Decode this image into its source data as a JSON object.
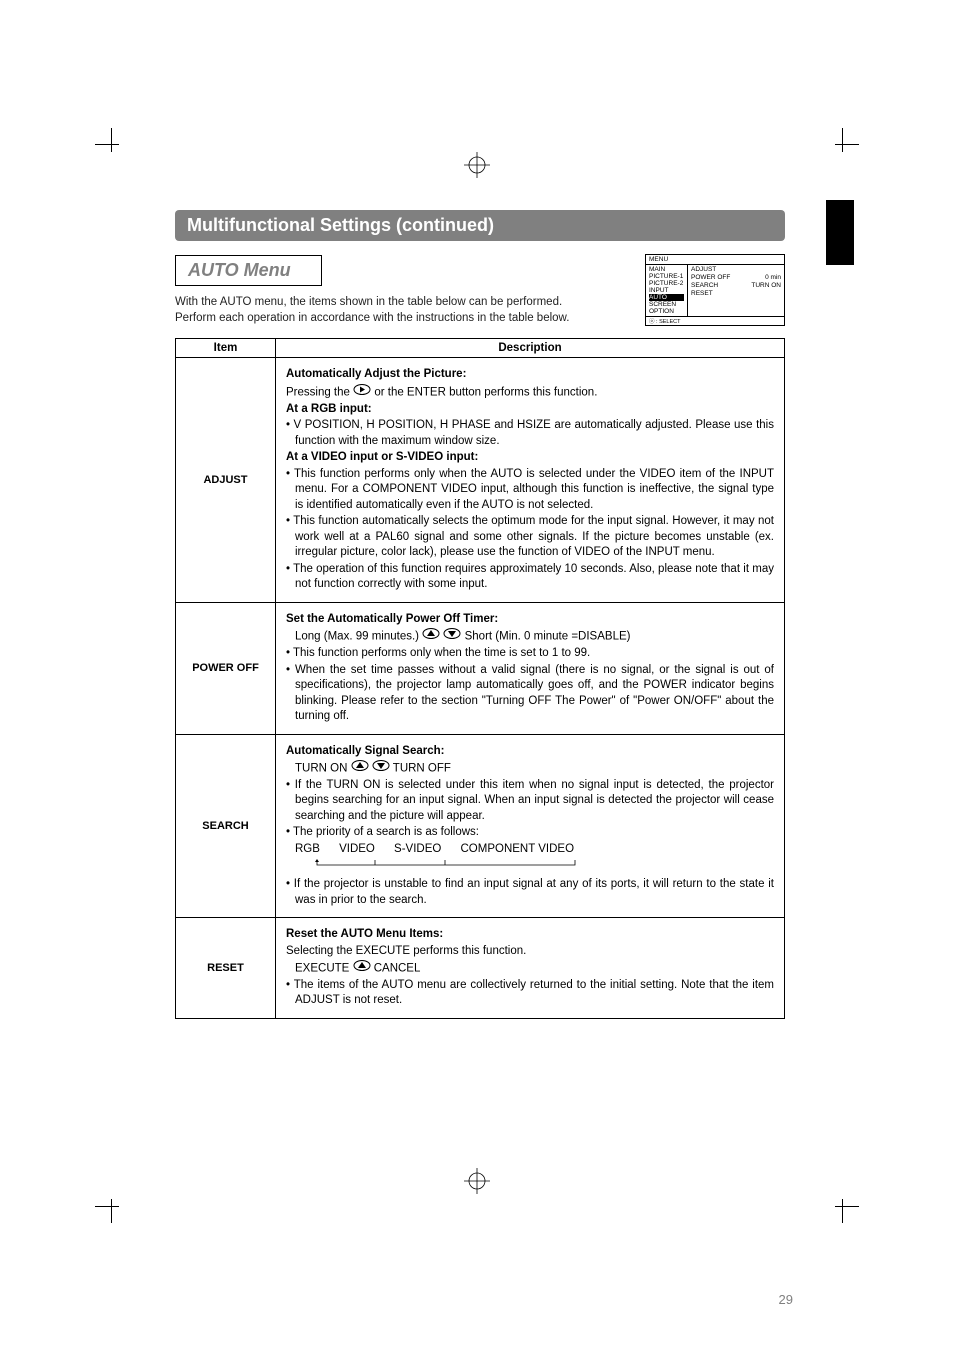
{
  "banner_title": "Multifunctional Settings (continued)",
  "section_title": "AUTO Menu",
  "intro_p1": "With the AUTO menu, the items shown in the table below can be performed.",
  "intro_p2": "Perform each operation in accordance with the instructions in the table below.",
  "menu_ss": {
    "header": "MENU",
    "left_items": [
      "MAIN",
      "PICTURE-1",
      "PICTURE-2",
      "INPUT",
      "AUTO",
      "SCREEN",
      "OPTION"
    ],
    "right_lines": [
      {
        "l": "ADJUST",
        "r": ""
      },
      {
        "l": "POWER OFF",
        "r": "0 min"
      },
      {
        "l": "SEARCH",
        "r": "TURN ON"
      },
      {
        "l": "RESET",
        "r": ""
      }
    ],
    "footer": "ⓞ : SELECT",
    "selected_index": 4
  },
  "table": {
    "h_item": "Item",
    "h_desc": "Description",
    "rows": [
      {
        "item": "ADJUST",
        "heading": "Automatically Adjust the Picture:",
        "line1_pre": "Pressing the ",
        "line1_post": " or the ENTER button performs this function.",
        "sub1": "At a RGB input:",
        "sub1_b1": "• V POSITION, H POSITION, H PHASE and HSIZE are automatically adjusted. Please use this function with the maximum window size.",
        "sub2": "At a VIDEO input or S-VIDEO input:",
        "sub2_b1": "• This function performs only when the AUTO is selected under the VIDEO item of the INPUT menu. For a COMPONENT VIDEO input, although this function is ineffective, the signal type is identified automatically even if the AUTO is not selected.",
        "sub2_b2": "• This function automatically selects the optimum mode for the input signal. However, it may not work well at a PAL60 signal and some other signals. If the picture becomes unstable (ex. irregular picture, color lack), please use the function of VIDEO of the INPUT menu.",
        "sub2_b3": "• The operation of this function requires approximately 10 seconds. Also, please note that it may not function correctly with some input."
      },
      {
        "item": "POWER OFF",
        "heading": "Set the Automatically Power Off Timer:",
        "line1_pre": "Long (Max. 99 minutes.) ",
        "line1_mid": "       ",
        "line1_post": " Short (Min. 0 minute =DISABLE)",
        "b1": "• This function performs only when the time is set to 1 to 99.",
        "b2": "• When the set time passes without a valid signal (there is no signal, or the signal is out of specifications), the projector lamp automatically goes off, and the POWER indicator begins blinking. Please refer to the section \"Turning OFF The Power\" of \"Power ON/OFF\" about the turning off."
      },
      {
        "item": "SEARCH",
        "heading": "Automatically Signal Search:",
        "line1_pre": "TURN ON ",
        "line1_mid": "       ",
        "line1_post": " TURN OFF",
        "b1": "• If the TURN ON is selected under this item when no signal input is detected, the projector begins searching for an input signal. When an input signal is detected the projector will cease searching and the picture will appear.",
        "b2": "• The priority of a search is as follows:",
        "seq": "RGB      VIDEO      S-VIDEO      COMPONENT VIDEO",
        "b3": "• If the projector is unstable to find an input signal at any of its ports, it will return to the state it was in prior to the search."
      },
      {
        "item": "RESET",
        "heading": "Reset the AUTO Menu Items:",
        "line1": "Selecting the EXECUTE performs this function.",
        "line2_pre": "EXECUTE ",
        "line2_post": "    CANCEL",
        "b1": "• The items of the AUTO menu are collectively returned to the initial setting. Note that the item ADJUST is not reset."
      }
    ]
  },
  "page_number": "29"
}
